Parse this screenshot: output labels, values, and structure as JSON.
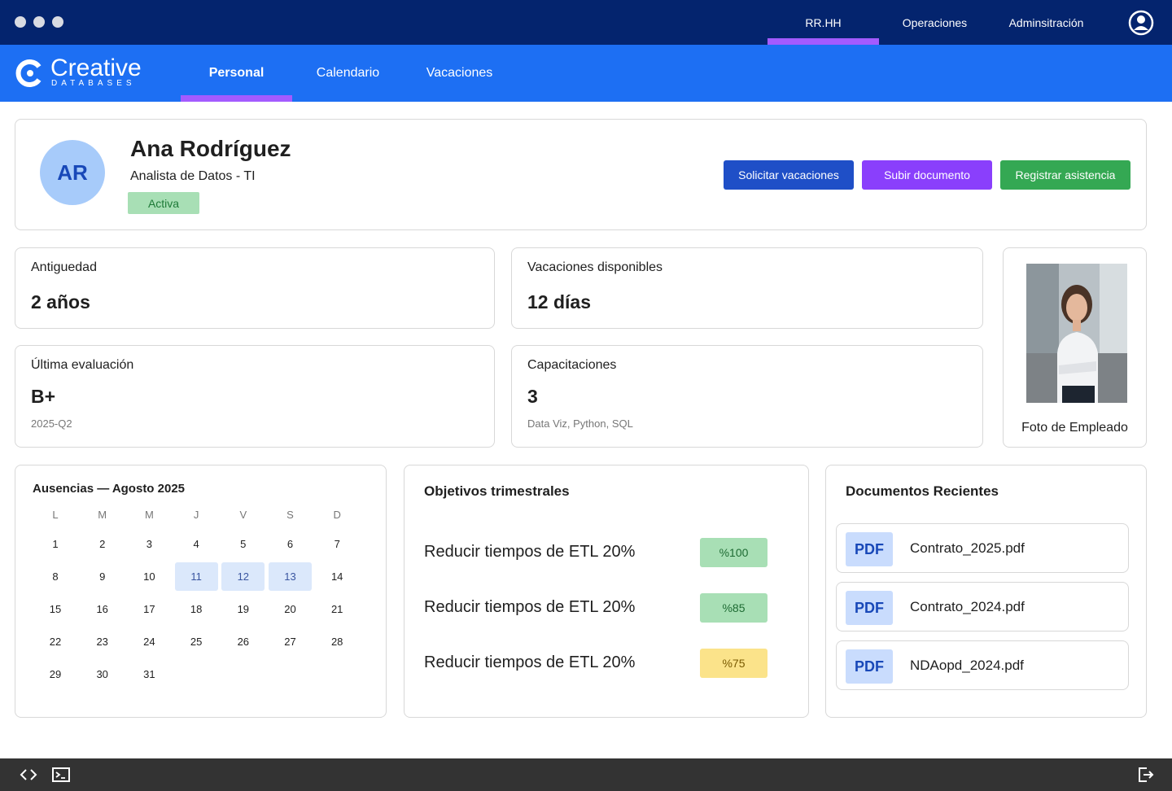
{
  "topbar": {
    "nav": [
      "RR.HH",
      "Operaciones",
      "Adminsitración"
    ]
  },
  "brand": {
    "name": "Creative",
    "tagline": "DATABASES"
  },
  "tabs": [
    "Personal",
    "Calendario",
    "Vacaciones"
  ],
  "profile": {
    "initials": "AR",
    "name": "Ana Rodríguez",
    "role": "Analista de Datos - TI",
    "status": "Activa",
    "actions": [
      "Solicitar vacaciones",
      "Subir documento",
      "Registrar asistencia"
    ]
  },
  "stats": [
    {
      "label": "Antiguedad",
      "value": "2 años"
    },
    {
      "label": "Vacaciones disponibles",
      "value": "12 días"
    },
    {
      "label": "Última evaluación",
      "value": "B+",
      "note": "2025-Q2"
    },
    {
      "label": "Capacitaciones",
      "value": "3",
      "note": "Data Viz, Python, SQL"
    }
  ],
  "photo": {
    "caption": "Foto de Empleado"
  },
  "calendar": {
    "title": "Ausencias — Agosto 2025",
    "weekdays": [
      "L",
      "M",
      "M",
      "J",
      "V",
      "S",
      "D"
    ],
    "days": [
      1,
      2,
      3,
      4,
      5,
      6,
      7,
      8,
      9,
      10,
      11,
      12,
      13,
      14,
      15,
      16,
      17,
      18,
      19,
      20,
      21,
      22,
      23,
      24,
      25,
      26,
      27,
      28,
      29,
      30,
      31
    ],
    "absences": [
      11,
      12,
      13
    ]
  },
  "objectives": {
    "title": "Objetivos trimestrales",
    "items": [
      {
        "text": "Reducir tiempos de ETL 20%",
        "progress": "%100"
      },
      {
        "text": "Reducir tiempos de ETL 20%",
        "progress": "%85"
      },
      {
        "text": "Reducir tiempos de ETL 20%",
        "progress": "%75"
      }
    ]
  },
  "documents": {
    "title": "Documentos Recientes",
    "items": [
      {
        "type": "PDF",
        "name": "Contrato_2025.pdf"
      },
      {
        "type": "PDF",
        "name": "Contrato_2024.pdf"
      },
      {
        "type": "PDF",
        "name": "NDAopd_2024.pdf"
      }
    ]
  }
}
